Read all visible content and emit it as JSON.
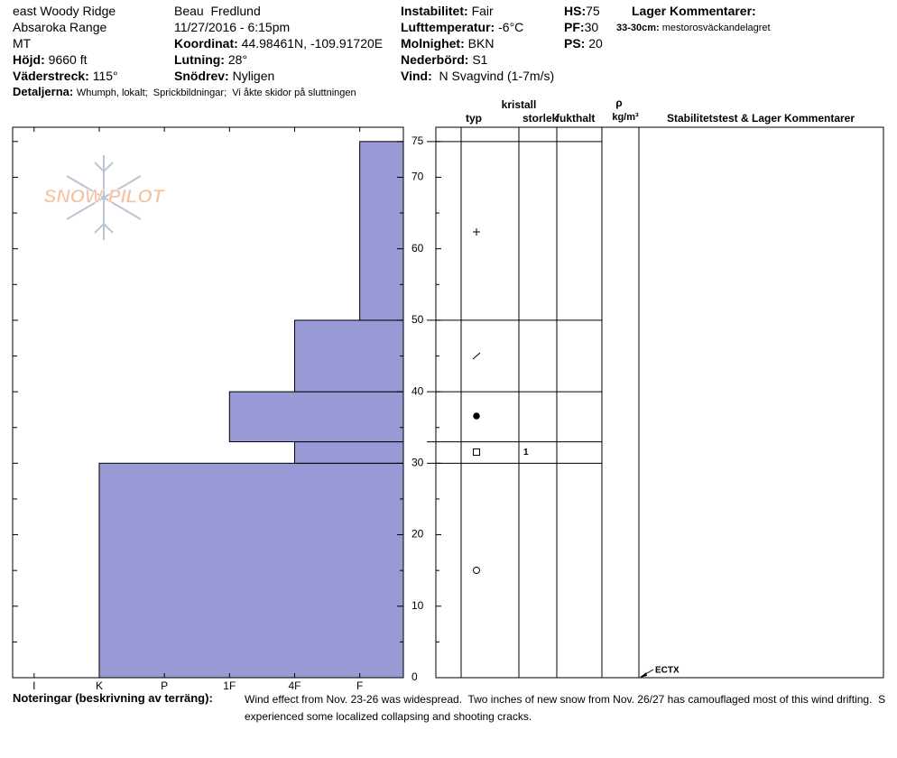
{
  "header": {
    "location": [
      "east Woody Ridge",
      "Absaroka Range",
      "MT"
    ],
    "observer": "Beau  Fredlund",
    "datetime": "11/27/2016 - 6:15pm",
    "elevation": {
      "label": "Höjd:",
      "value": "9660 ft"
    },
    "aspect": {
      "label": "Väderstreck:",
      "value": "115°"
    },
    "details": {
      "label": "Detaljerna:",
      "value": "Whumph, lokalt;  Sprickbildningar;  Vi åkte skidor på sluttningen"
    },
    "coordinates": {
      "label": "Koordinat:",
      "value": "44.98461N, -109.91720E"
    },
    "slope": {
      "label": "Lutning:",
      "value": "28°"
    },
    "wind_loading": {
      "label": "Snödrev:",
      "value": "Nyligen"
    },
    "instability": {
      "label": "Instabilitet:",
      "value": "Fair"
    },
    "air_temp": {
      "label": "Lufttemperatur:",
      "value": "-6°C"
    },
    "sky": {
      "label": "Molnighet:",
      "value": "BKN"
    },
    "precip": {
      "label": "Nederbörd:",
      "value": "S1"
    },
    "wind": {
      "label": "Vind:",
      "value": "N Svagvind (1-7m/s)"
    },
    "hs": {
      "label": "HS:",
      "value": "75"
    },
    "pf": {
      "label": "PF:",
      "value": "30"
    },
    "ps": {
      "label": "PS:",
      "value": "20"
    },
    "layer_comments": {
      "label": "Lager Kommentarer:",
      "items": [
        {
          "label": "33-30cm:",
          "value": "mestorosväckandelagret"
        }
      ]
    }
  },
  "logo": "SNOW PILOT",
  "chart_data": {
    "type": "profile",
    "layers": {
      "top": [
        30,
        33,
        40,
        50,
        75
      ],
      "bottom": [
        0,
        30,
        33,
        40,
        50
      ],
      "hardness": [
        5,
        2,
        3,
        2,
        1
      ],
      "grain_size": [
        null,
        "1",
        null,
        null,
        null
      ]
    },
    "color": "#9999d6",
    "xlim": [
      6.33,
      0.33
    ],
    "xticks": [
      {
        "value": 6,
        "label": "I"
      },
      {
        "value": 5,
        "label": "K"
      },
      {
        "value": 4,
        "label": "P"
      },
      {
        "value": 3,
        "label": "1F"
      },
      {
        "value": 2,
        "label": "4F"
      },
      {
        "value": 1,
        "label": "F"
      }
    ],
    "ylim": [
      0,
      77
    ],
    "yticks": [
      0,
      10,
      20,
      30,
      40,
      50,
      60,
      70,
      75
    ],
    "minor_yticks": [
      5,
      15,
      25,
      35,
      45,
      55,
      65
    ],
    "stability_tests": [
      {
        "label": "ECTX",
        "depth": 0
      }
    ],
    "table_headers": {
      "crystal": "kristall",
      "type": "typ",
      "size": "storlek",
      "moisture": "fukthalt",
      "rho": "ρ",
      "density_unit": "kg/m³",
      "comments": "Stabilitetstest & Lager Kommentarer"
    }
  },
  "footer": {
    "label": "Noteringar (beskrivning av terräng):",
    "lines": [
      "Wind effect from Nov. 23-26 was widespread.  Two inches of new snow from Nov. 26/27 has camouflaged most of this wind drifting.  S",
      "experienced some localized collapsing and shooting cracks."
    ]
  }
}
